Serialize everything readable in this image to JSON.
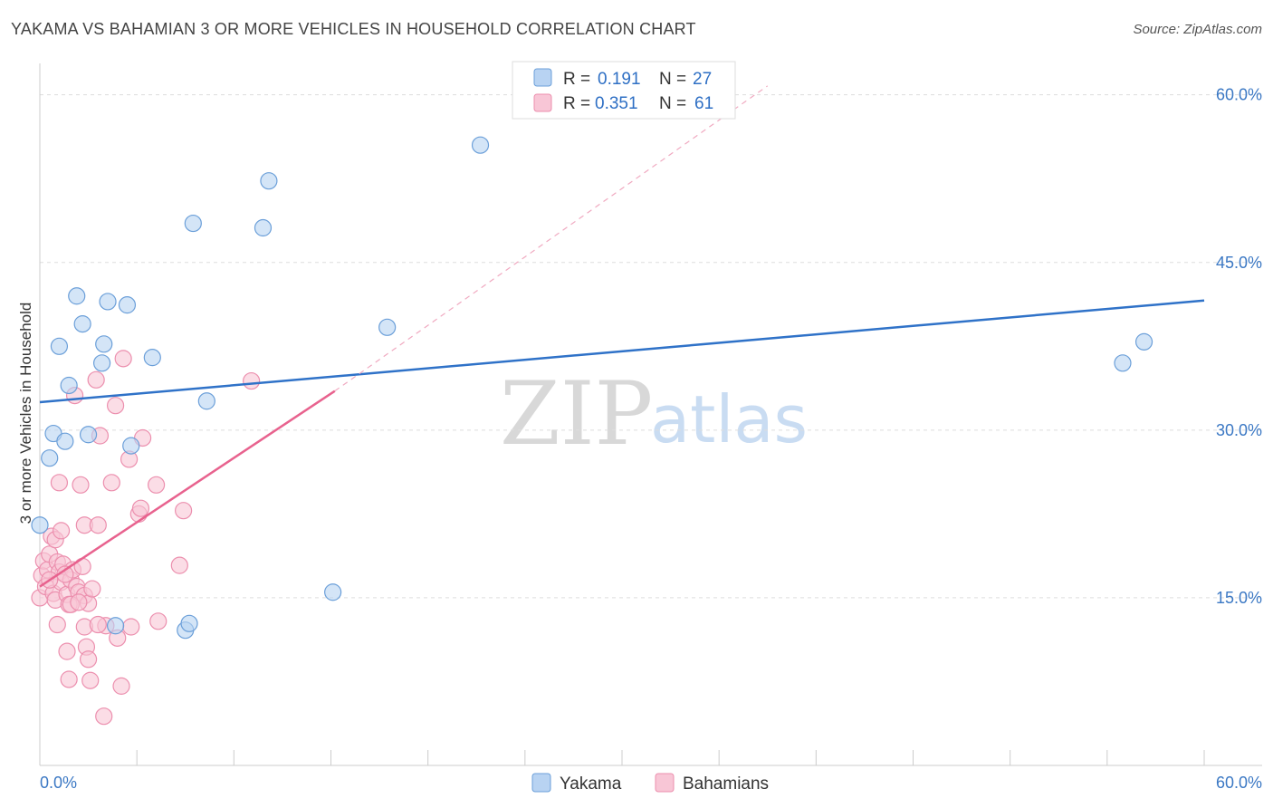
{
  "title": "YAKAMA VS BAHAMIAN 3 OR MORE VEHICLES IN HOUSEHOLD CORRELATION CHART",
  "source": "Source: ZipAtlas.com",
  "watermark": {
    "zip": "ZIP",
    "atlas": "atlas"
  },
  "colors": {
    "yakama_fill": "#b8d3f2",
    "yakama_stroke": "#6b9fd9",
    "yakama_line": "#2f72c8",
    "bahamian_fill": "#f8c6d6",
    "bahamian_stroke": "#ec8fae",
    "bahamian_line": "#e8628e",
    "grid": "#dddddd",
    "axis_text": "#3b78c4"
  },
  "legend": {
    "rows": [
      {
        "r_label": "R =",
        "r_value": "0.191",
        "n_label": "N =",
        "n_value": "27"
      },
      {
        "r_label": "R =",
        "r_value": "0.351",
        "n_label": "N =",
        "n_value": "61"
      }
    ]
  },
  "chart_data": {
    "type": "scatter",
    "title": "YAKAMA VS BAHAMIAN 3 OR MORE VEHICLES IN HOUSEHOLD CORRELATION CHART",
    "xlabel": "",
    "ylabel": "3 or more Vehicles in Household",
    "xlim": [
      0,
      60
    ],
    "ylim": [
      0,
      62
    ],
    "x_tick_labels": [
      "0.0%",
      "60.0%"
    ],
    "y_ticks": [
      15,
      30,
      45,
      60
    ],
    "y_tick_labels": [
      "15.0%",
      "30.0%",
      "45.0%",
      "60.0%"
    ],
    "legend_position": "top-center",
    "series": [
      {
        "name": "Yakama",
        "r": 0.191,
        "n": 27,
        "trend": {
          "x0": 0,
          "y0": 32.5,
          "x1": 60,
          "y1": 41.6
        },
        "points": [
          [
            0.0,
            21.5
          ],
          [
            0.5,
            27.5
          ],
          [
            0.7,
            29.7
          ],
          [
            1.3,
            29.0
          ],
          [
            1.5,
            34.0
          ],
          [
            1.0,
            37.5
          ],
          [
            1.9,
            42.0
          ],
          [
            2.2,
            39.5
          ],
          [
            2.5,
            29.6
          ],
          [
            3.2,
            36.0
          ],
          [
            3.3,
            37.7
          ],
          [
            3.5,
            41.5
          ],
          [
            4.5,
            41.2
          ],
          [
            4.7,
            28.6
          ],
          [
            5.8,
            36.5
          ],
          [
            3.9,
            12.5
          ],
          [
            7.5,
            12.1
          ],
          [
            7.7,
            12.7
          ],
          [
            7.9,
            48.5
          ],
          [
            8.6,
            32.6
          ],
          [
            11.5,
            48.1
          ],
          [
            11.8,
            52.3
          ],
          [
            15.1,
            15.5
          ],
          [
            17.9,
            39.2
          ],
          [
            22.7,
            55.5
          ],
          [
            55.8,
            36.0
          ],
          [
            56.9,
            37.9
          ]
        ]
      },
      {
        "name": "Bahamians",
        "r": 0.351,
        "n": 61,
        "trend": {
          "x0": 0,
          "y0": 16.0,
          "x1": 15.2,
          "y1": 33.5
        },
        "trend_extension": {
          "x0": 15.2,
          "y0": 33.5,
          "x1": 37.5,
          "y1": 60.8
        },
        "points": [
          [
            0.0,
            15.0
          ],
          [
            0.1,
            17.0
          ],
          [
            0.2,
            18.3
          ],
          [
            0.3,
            16.0
          ],
          [
            0.4,
            17.5
          ],
          [
            0.5,
            18.9
          ],
          [
            0.6,
            20.5
          ],
          [
            0.7,
            15.4
          ],
          [
            0.8,
            14.8
          ],
          [
            0.9,
            18.2
          ],
          [
            1.0,
            17.3
          ],
          [
            1.1,
            16.4
          ],
          [
            1.2,
            18.0
          ],
          [
            0.8,
            20.2
          ],
          [
            1.1,
            21.0
          ],
          [
            1.4,
            15.3
          ],
          [
            1.5,
            14.4
          ],
          [
            1.6,
            16.6
          ],
          [
            1.7,
            17.5
          ],
          [
            1.9,
            16.0
          ],
          [
            2.0,
            15.5
          ],
          [
            2.2,
            17.8
          ],
          [
            2.3,
            15.2
          ],
          [
            2.5,
            14.5
          ],
          [
            2.7,
            15.8
          ],
          [
            1.0,
            25.3
          ],
          [
            1.4,
            10.2
          ],
          [
            1.5,
            7.7
          ],
          [
            1.8,
            33.1
          ],
          [
            2.1,
            25.1
          ],
          [
            2.3,
            21.5
          ],
          [
            2.4,
            10.6
          ],
          [
            2.5,
            9.5
          ],
          [
            2.6,
            7.6
          ],
          [
            2.9,
            34.5
          ],
          [
            3.0,
            21.5
          ],
          [
            3.1,
            29.5
          ],
          [
            3.3,
            4.4
          ],
          [
            3.4,
            12.5
          ],
          [
            3.7,
            25.3
          ],
          [
            3.9,
            32.2
          ],
          [
            4.0,
            11.4
          ],
          [
            4.2,
            7.1
          ],
          [
            4.3,
            36.4
          ],
          [
            4.6,
            27.4
          ],
          [
            4.7,
            12.4
          ],
          [
            5.1,
            22.5
          ],
          [
            5.2,
            23.0
          ],
          [
            5.3,
            29.3
          ],
          [
            6.0,
            25.1
          ],
          [
            6.1,
            12.9
          ],
          [
            7.2,
            17.9
          ],
          [
            7.4,
            22.8
          ],
          [
            10.9,
            34.4
          ],
          [
            0.9,
            12.6
          ],
          [
            2.3,
            12.4
          ],
          [
            1.6,
            14.4
          ],
          [
            3.0,
            12.6
          ],
          [
            0.5,
            16.6
          ],
          [
            1.3,
            17.1
          ],
          [
            2.0,
            14.6
          ]
        ]
      }
    ]
  }
}
